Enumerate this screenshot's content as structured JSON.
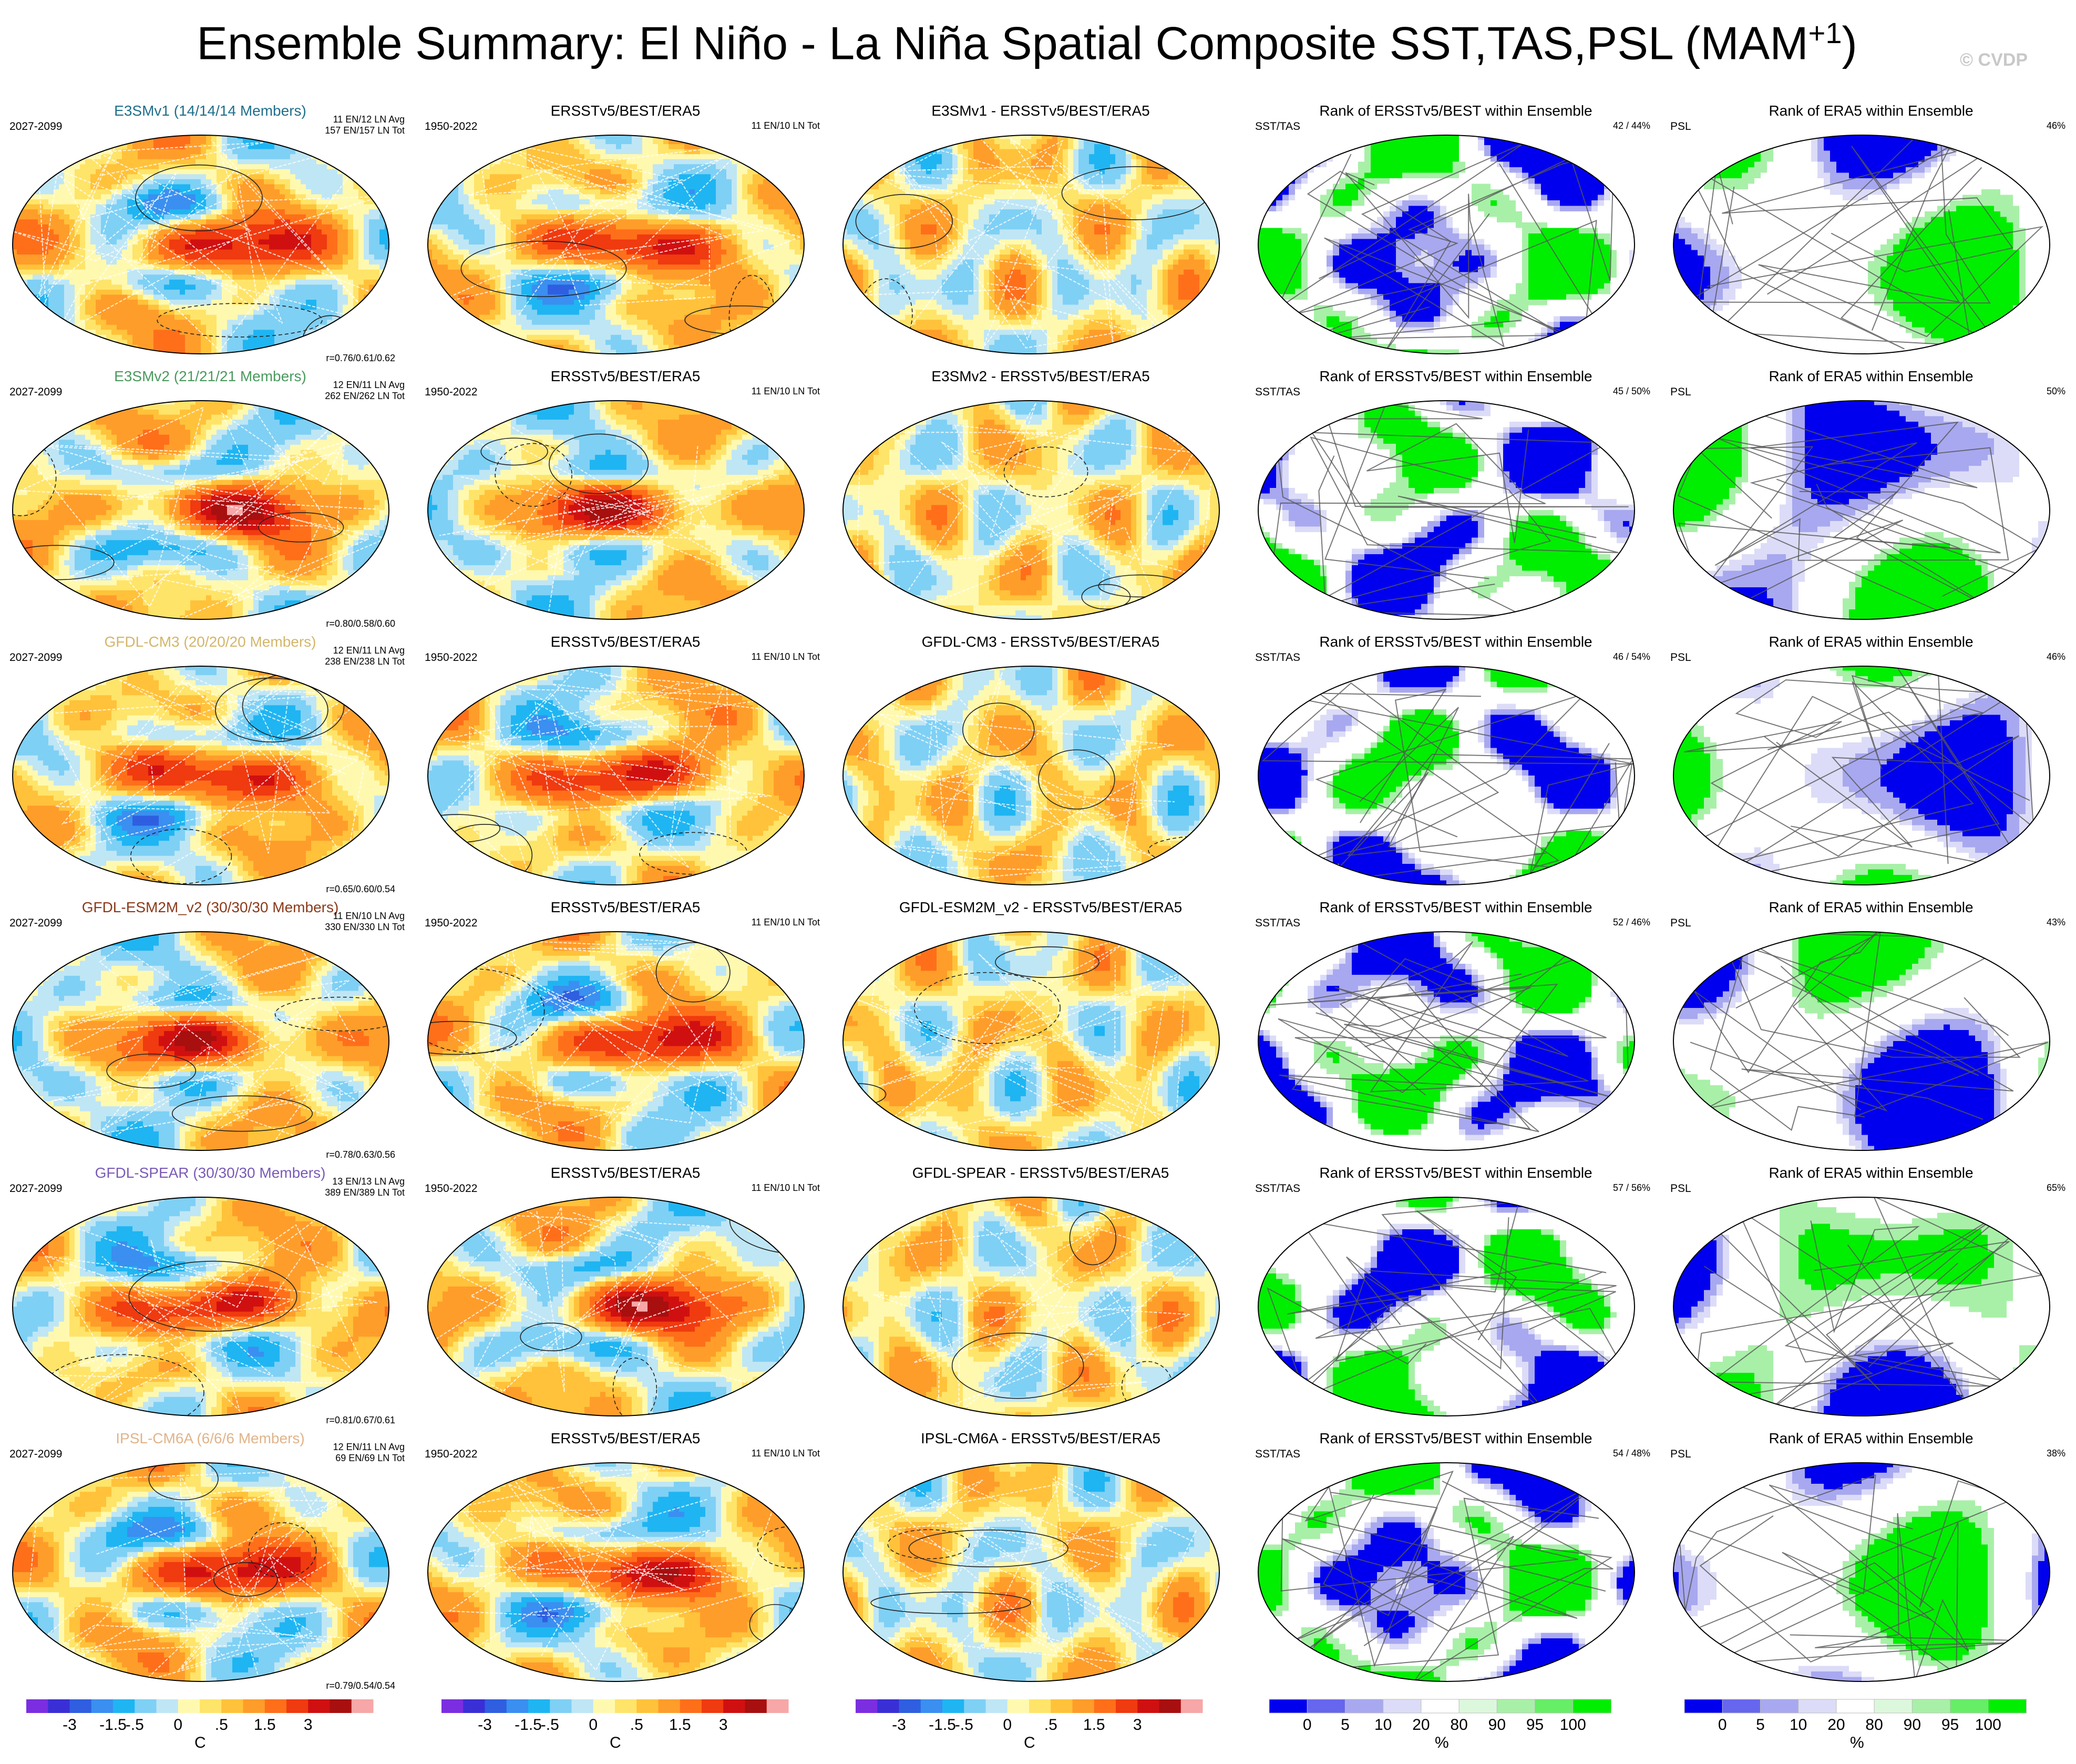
{
  "title": "Ensemble Summary: El Niño - La Niña Spatial Composite SST,TAS,PSL (MAM",
  "title_sup": "+1",
  "title_end": ")",
  "copyright": "© CVDP",
  "rows": [
    {
      "model_title": "E3SMv1 (14/14/14 Members)",
      "model_color": "#1f6f8b",
      "model_period": "2027-2099",
      "model_counts_1": "11 EN/12 LN Avg",
      "model_counts_2": "157 EN/157 LN Tot",
      "model_r": "r=0.76/0.61/0.62",
      "obs_title": "ERSSTv5/BEST/ERA5",
      "obs_period": "1950-2022",
      "obs_counts": "11 EN/10 LN Tot",
      "diff_title": "E3SMv1 - ERSSTv5/BEST/ERA5",
      "rank1_title": "Rank of ERSSTv5/BEST within Ensemble",
      "rank1_var": "SST/TAS",
      "rank1_pct": "42 /  44%",
      "rank2_title": "Rank of ERA5 within Ensemble",
      "rank2_var": "PSL",
      "rank2_pct": "46%"
    },
    {
      "model_title": "E3SMv2 (21/21/21 Members)",
      "model_color": "#4a9a5e",
      "model_period": "2027-2099",
      "model_counts_1": "12 EN/11 LN Avg",
      "model_counts_2": "262 EN/262 LN Tot",
      "model_r": "r=0.80/0.58/0.60",
      "obs_title": "ERSSTv5/BEST/ERA5",
      "obs_period": "1950-2022",
      "obs_counts": "11 EN/10 LN Tot",
      "diff_title": "E3SMv2 - ERSSTv5/BEST/ERA5",
      "rank1_title": "Rank of ERSSTv5/BEST within Ensemble",
      "rank1_var": "SST/TAS",
      "rank1_pct": "45 /  50%",
      "rank2_title": "Rank of ERA5 within Ensemble",
      "rank2_var": "PSL",
      "rank2_pct": "50%"
    },
    {
      "model_title": "GFDL-CM3 (20/20/20 Members)",
      "model_color": "#d4b66a",
      "model_period": "2027-2099",
      "model_counts_1": "12 EN/11 LN Avg",
      "model_counts_2": "238 EN/238 LN Tot",
      "model_r": "r=0.65/0.60/0.54",
      "obs_title": "ERSSTv5/BEST/ERA5",
      "obs_period": "1950-2022",
      "obs_counts": "11 EN/10 LN Tot",
      "diff_title": "GFDL-CM3 - ERSSTv5/BEST/ERA5",
      "rank1_title": "Rank of ERSSTv5/BEST within Ensemble",
      "rank1_var": "SST/TAS",
      "rank1_pct": "46 /  54%",
      "rank2_title": "Rank of ERA5 within Ensemble",
      "rank2_var": "PSL",
      "rank2_pct": "46%"
    },
    {
      "model_title": "GFDL-ESM2M_v2 (30/30/30 Members)",
      "model_color": "#8b3a1a",
      "model_period": "2027-2099",
      "model_counts_1": "11 EN/10 LN Avg",
      "model_counts_2": "330 EN/330 LN Tot",
      "model_r": "r=0.78/0.63/0.56",
      "obs_title": "ERSSTv5/BEST/ERA5",
      "obs_period": "1950-2022",
      "obs_counts": "11 EN/10 LN Tot",
      "diff_title": "GFDL-ESM2M_v2 - ERSSTv5/BEST/ERA5",
      "rank1_title": "Rank of ERSSTv5/BEST within Ensemble",
      "rank1_var": "SST/TAS",
      "rank1_pct": "52 /  46%",
      "rank2_title": "Rank of ERA5 within Ensemble",
      "rank2_var": "PSL",
      "rank2_pct": "43%"
    },
    {
      "model_title": "GFDL-SPEAR (30/30/30 Members)",
      "model_color": "#7a5ab8",
      "model_period": "2027-2099",
      "model_counts_1": "13 EN/13 LN Avg",
      "model_counts_2": "389 EN/389 LN Tot",
      "model_r": "r=0.81/0.67/0.61",
      "obs_title": "ERSSTv5/BEST/ERA5",
      "obs_period": "1950-2022",
      "obs_counts": "11 EN/10 LN Tot",
      "diff_title": "GFDL-SPEAR - ERSSTv5/BEST/ERA5",
      "rank1_title": "Rank of ERSSTv5/BEST within Ensemble",
      "rank1_var": "SST/TAS",
      "rank1_pct": "57 /  56%",
      "rank2_title": "Rank of ERA5 within Ensemble",
      "rank2_var": "PSL",
      "rank2_pct": "65%"
    },
    {
      "model_title": "IPSL-CM6A (6/6/6 Members)",
      "model_color": "#e0b48a",
      "model_period": "2027-2099",
      "model_counts_1": "12 EN/11 LN Avg",
      "model_counts_2": "69 EN/69 LN Tot",
      "model_r": "r=0.79/0.54/0.54",
      "obs_title": "ERSSTv5/BEST/ERA5",
      "obs_period": "1950-2022",
      "obs_counts": "11 EN/10 LN Tot",
      "diff_title": "IPSL-CM6A - ERSSTv5/BEST/ERA5",
      "rank1_title": "Rank of ERSSTv5/BEST within Ensemble",
      "rank1_var": "SST/TAS",
      "rank1_pct": "54 /  48%",
      "rank2_title": "Rank of ERA5 within Ensemble",
      "rank2_var": "PSL",
      "rank2_pct": "38%"
    }
  ],
  "colorbars": {
    "temp": {
      "unit": "C",
      "ticks": [
        "-3",
        "-1.5",
        "-.5",
        "0",
        ".5",
        "1.5",
        "3"
      ],
      "colors": [
        "#7b2ee0",
        "#3a2fd6",
        "#2f5fe0",
        "#3a8ff0",
        "#1fb5f2",
        "#7fd0f5",
        "#bfe6f5",
        "#fff9b0",
        "#ffe46a",
        "#ffc23a",
        "#ff9d2a",
        "#ff6f1a",
        "#f03a10",
        "#d01010",
        "#a80f0f",
        "#f7a7a7"
      ]
    },
    "rank": {
      "unit": "%",
      "ticks": [
        "0",
        "5",
        "10",
        "20",
        "80",
        "90",
        "95",
        "100"
      ],
      "colors": [
        "#0000ee",
        "#6666ee",
        "#a8a8f0",
        "#dcdcf8",
        "#ffffff",
        "#dcf8dc",
        "#a8f0a8",
        "#66ee66",
        "#00ee00"
      ]
    }
  },
  "chart_data": {
    "type": "heatmap",
    "description_type": "multi-panel global map composite",
    "panels_per_row": 5,
    "rows": 6,
    "temp_levels": [
      -3,
      -2.5,
      -2,
      -1.5,
      -1,
      -0.5,
      -0.25,
      0,
      0.25,
      0.5,
      1,
      1.5,
      2,
      2.5,
      3
    ],
    "rank_levels": [
      0,
      5,
      10,
      20,
      80,
      90,
      95,
      100
    ]
  }
}
